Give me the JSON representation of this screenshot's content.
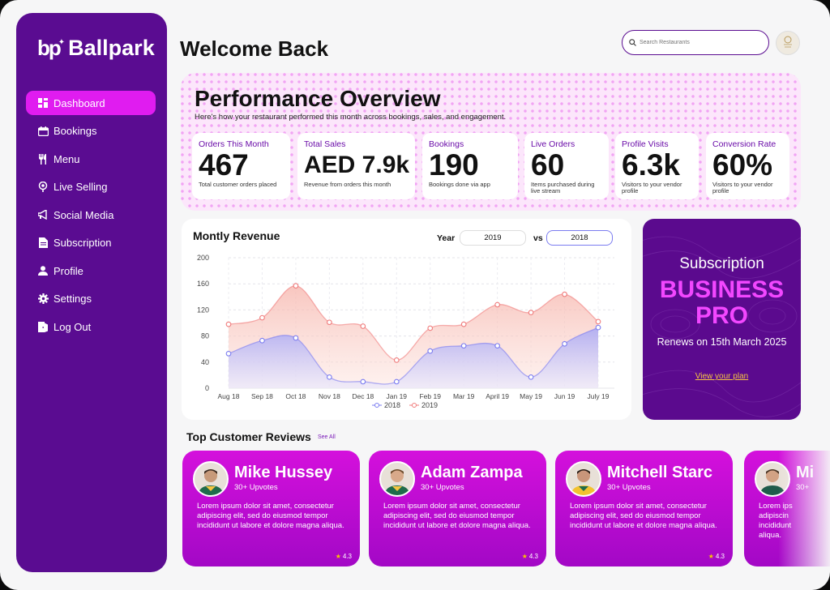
{
  "brand": {
    "logo_mark": "bp",
    "name": "Ballpark"
  },
  "sidebar": {
    "items": [
      {
        "label": "Dashboard",
        "icon": "dashboard-icon",
        "active": true
      },
      {
        "label": "Bookings",
        "icon": "calendar-icon"
      },
      {
        "label": "Menu",
        "icon": "utensils-icon"
      },
      {
        "label": "Live Selling",
        "icon": "broadcast-icon"
      },
      {
        "label": "Social Media",
        "icon": "megaphone-icon"
      },
      {
        "label": "Subscription",
        "icon": "document-icon"
      },
      {
        "label": "Profile",
        "icon": "user-icon"
      },
      {
        "label": "Settings",
        "icon": "gear-icon"
      },
      {
        "label": "Log Out",
        "icon": "logout-icon"
      }
    ]
  },
  "header": {
    "welcome": "Welcome Back",
    "search_placeholder": "Search Restaurants"
  },
  "performance": {
    "title": "Performance Overview",
    "subtitle": "Here's how your restaurant performed this month across bookings, sales, and engagement.",
    "stats": [
      {
        "label": "Orders This Month",
        "value": "467",
        "desc": "Total customer orders placed"
      },
      {
        "label": "Total Sales",
        "value": "AED 7.9k",
        "desc": "Revenue from orders this month"
      },
      {
        "label": "Bookings",
        "value": "190",
        "desc": "Bookings done via app"
      },
      {
        "label": "Live Orders",
        "value": "60",
        "desc": "Items purchased during live stream"
      },
      {
        "label": "Profile Visits",
        "value": "6.3k",
        "desc": "Visitors to your vendor profile"
      },
      {
        "label": "Conversion Rate",
        "value": "60%",
        "desc": "Visitors to your vendor profile"
      }
    ]
  },
  "revenue": {
    "title": "Montly Revenue",
    "year_label": "Year",
    "vs_label": "vs",
    "year_a": "2019",
    "year_b": "2018"
  },
  "chart_data": {
    "type": "area",
    "categories": [
      "Aug 18",
      "Sep 18",
      "Oct 18",
      "Nov 18",
      "Dec 18",
      "Jan 19",
      "Feb 19",
      "Mar 19",
      "April 19",
      "May 19",
      "Jun 19",
      "July 19"
    ],
    "series": [
      {
        "name": "2018",
        "values": [
          53,
          73,
          77,
          17,
          10,
          10,
          57,
          65,
          65,
          17,
          68,
          93
        ],
        "color": "#7b7cf0"
      },
      {
        "name": "2019",
        "values": [
          98,
          108,
          157,
          101,
          95,
          43,
          92,
          98,
          128,
          116,
          144,
          102
        ],
        "color": "#f07b7b"
      }
    ],
    "ylim": [
      0,
      200
    ],
    "yticks": [
      0,
      40,
      80,
      120,
      160,
      200
    ],
    "grid": true,
    "legend": "bottom"
  },
  "subscription": {
    "title": "Subscription",
    "plan_line1": "BUSINESS",
    "plan_line2": "PRO",
    "renews": "Renews on 15th March 2025",
    "link": "View your plan"
  },
  "reviews": {
    "title": "Top Customer Reviews",
    "see_all": "See All",
    "items": [
      {
        "name": "Mike Hussey",
        "votes": "30+ Upvotes",
        "text": "Lorem ipsum dolor sit amet, consectetur adipiscing elit, sed do eiusmod tempor incididunt ut labore et dolore magna aliqua.",
        "rating": "4.3"
      },
      {
        "name": "Adam Zampa",
        "votes": "30+ Upvotes",
        "text": "Lorem ipsum dolor sit amet, consectetur adipiscing elit, sed do eiusmod tempor incididunt ut labore et dolore magna aliqua.",
        "rating": "4.3"
      },
      {
        "name": "Mitchell Starc",
        "votes": "30+ Upvotes",
        "text": "Lorem ipsum dolor sit amet, consectetur adipiscing elit, sed do eiusmod tempor incididunt ut labore et dolore magna aliqua.",
        "rating": "4.3"
      },
      {
        "name": "Mi",
        "votes": "30+",
        "text": "Lorem ips adipiscin incididunt aliqua.",
        "rating": ""
      }
    ]
  },
  "colors": {
    "primary": "#5a0c91",
    "accent": "#e01cf0",
    "series_2018": "#7b7cf0",
    "series_2019": "#f07b7b"
  }
}
